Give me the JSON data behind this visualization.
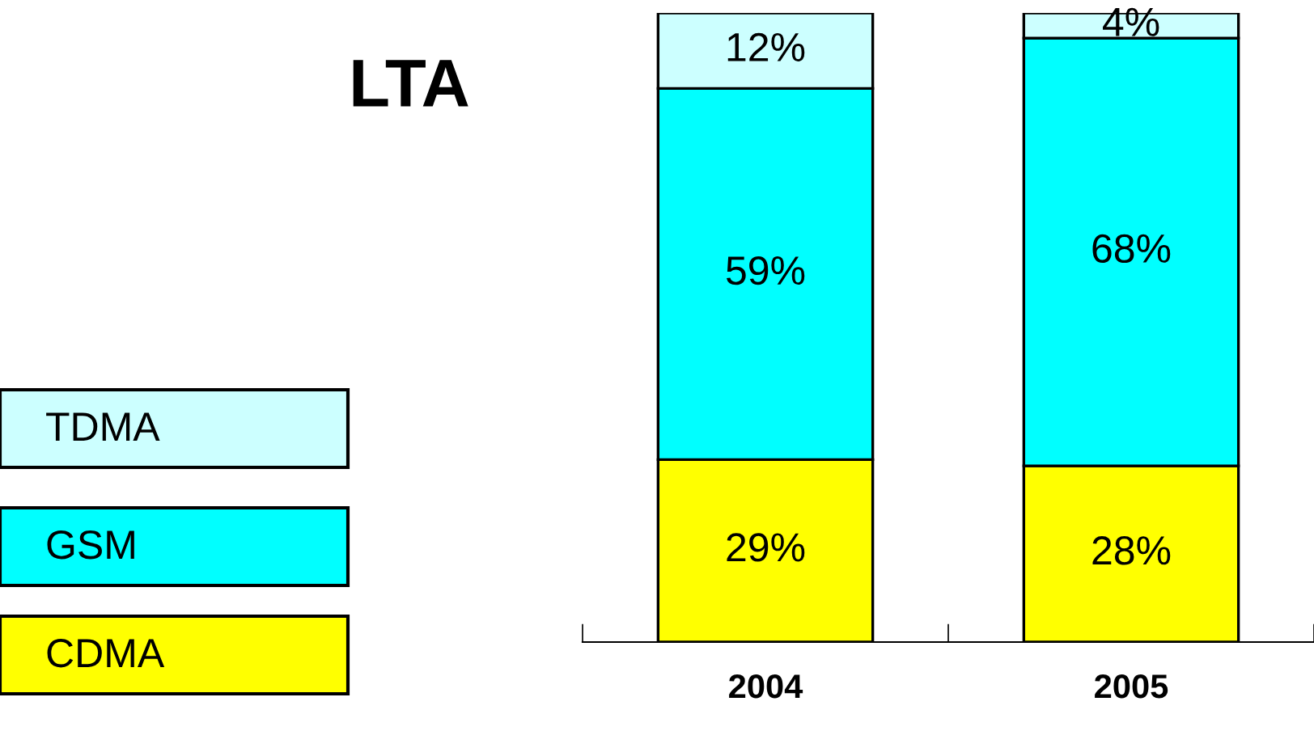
{
  "chart_data": {
    "type": "bar",
    "title": "LTA",
    "categories": [
      "2004",
      "2005"
    ],
    "stacked": true,
    "legend": "left",
    "series": [
      {
        "name": "CDMA",
        "color": "#ffff00",
        "values": [
          29,
          28
        ],
        "value_labels": [
          "29%",
          "28%"
        ]
      },
      {
        "name": "GSM",
        "color": "#00ffff",
        "values": [
          59,
          68
        ],
        "value_labels": [
          "59%",
          "68%"
        ]
      },
      {
        "name": "TDMA",
        "color": "#ccffff",
        "values": [
          12,
          4
        ],
        "value_labels": [
          "12%",
          "4%"
        ]
      }
    ]
  }
}
